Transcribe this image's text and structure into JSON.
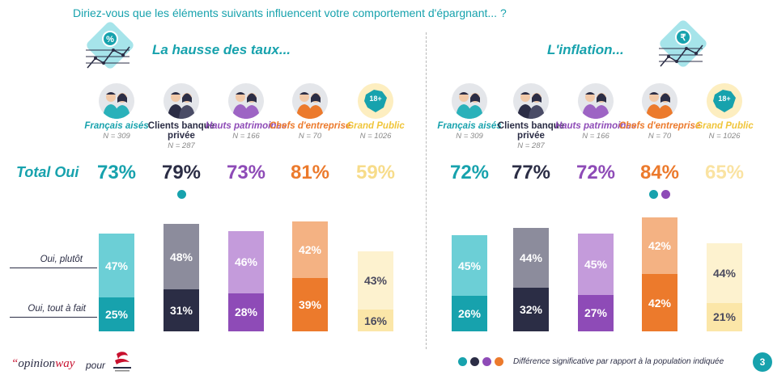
{
  "question": "Diriez-vous que les éléments suivants influencent votre comportement d'épargnant... ?",
  "total_label": "Total Oui",
  "row_labels": {
    "plutot": "Oui, plutôt",
    "tout_a_fait": "Oui, tout à fait"
  },
  "colors": {
    "teal": "#17a2ad",
    "navy": "#2b2d45",
    "purple": "#8e4bb7",
    "orange": "#ec7a2c",
    "yellow": "#f0c53a",
    "teal_light": "#6ccfd6",
    "navy_light": "#8c8c9c",
    "purple_light": "#c49bdb",
    "orange_light": "#f4b283",
    "yellow_light": "#fbe6a8",
    "yellow_total": "#f7dc8a",
    "yellow_total_right": "#fae3a2"
  },
  "groups": [
    {
      "name": "Français aisés",
      "n": "N = 309",
      "color": "teal"
    },
    {
      "name": "Clients banque privée",
      "n": "N = 287",
      "color": "navy"
    },
    {
      "name": "Hauts patrimoines",
      "n": "N = 166",
      "color": "purple"
    },
    {
      "name": "Chefs d'entreprise",
      "n": "N = 70",
      "color": "orange"
    },
    {
      "name": "Grand Public",
      "n": "N = 1026",
      "color": "yellow"
    }
  ],
  "panels": [
    {
      "title": "La hausse des taux...",
      "icon": "percent-chart-icon",
      "totals": [
        "73%",
        "79%",
        "73%",
        "81%",
        "59%"
      ]
    },
    {
      "title": "L'inflation...",
      "icon": "currency-chart-icon",
      "totals": [
        "72%",
        "77%",
        "72%",
        "84%",
        "65%"
      ]
    }
  ],
  "footer": {
    "logo_quote": "“",
    "logo_opinion": "opinion",
    "logo_way": "way",
    "pour": "pour",
    "legend": "Différence significative par rapport à la population indiquée",
    "page": "3"
  },
  "chart_data": [
    {
      "type": "bar",
      "title": "La hausse des taux...",
      "categories": [
        "Français aisés",
        "Clients banque privée",
        "Hauts patrimoines",
        "Chefs d'entreprise",
        "Grand Public"
      ],
      "series": [
        {
          "name": "Oui, tout à fait",
          "values": [
            25,
            31,
            28,
            39,
            16
          ]
        },
        {
          "name": "Oui, plutôt",
          "values": [
            47,
            48,
            46,
            42,
            43
          ]
        }
      ],
      "totals": [
        73,
        79,
        73,
        81,
        59
      ],
      "significance": [
        [],
        [
          "teal"
        ],
        [],
        [],
        []
      ]
    },
    {
      "type": "bar",
      "title": "L'inflation...",
      "categories": [
        "Français aisés",
        "Clients banque privée",
        "Hauts patrimoines",
        "Chefs d'entreprise",
        "Grand Public"
      ],
      "series": [
        {
          "name": "Oui, tout à fait",
          "values": [
            26,
            32,
            27,
            42,
            21
          ]
        },
        {
          "name": "Oui, plutôt",
          "values": [
            45,
            44,
            45,
            42,
            44
          ]
        }
      ],
      "totals": [
        72,
        77,
        72,
        84,
        65
      ],
      "significance": [
        [],
        [],
        [],
        [
          "teal",
          "purple"
        ],
        []
      ]
    }
  ]
}
